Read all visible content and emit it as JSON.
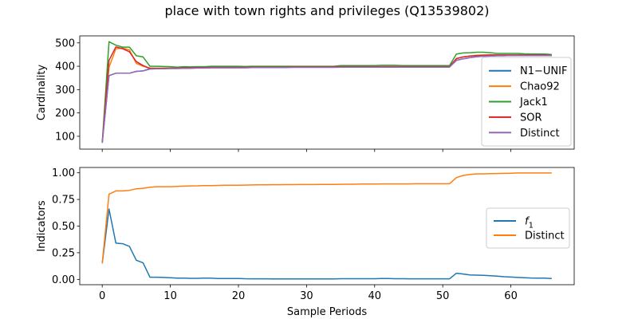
{
  "figure": {
    "title": "place with town rights and privileges (Q13539802)"
  },
  "chart_data": [
    {
      "type": "line",
      "ylabel": "Cardinality",
      "xlabel": "",
      "xlim": [
        -3.3,
        69.3
      ],
      "ylim": [
        45,
        530
      ],
      "xticks": [
        0,
        10,
        20,
        30,
        40,
        50,
        60
      ],
      "yticks": [
        100,
        200,
        300,
        400,
        500
      ],
      "x": [
        0,
        1,
        2,
        3,
        4,
        5,
        6,
        7,
        8,
        9,
        10,
        11,
        12,
        13,
        14,
        15,
        16,
        17,
        18,
        19,
        20,
        21,
        22,
        23,
        24,
        25,
        26,
        27,
        28,
        29,
        30,
        31,
        32,
        33,
        34,
        35,
        36,
        37,
        38,
        39,
        40,
        41,
        42,
        43,
        44,
        45,
        46,
        47,
        48,
        49,
        50,
        51,
        52,
        53,
        54,
        55,
        56,
        57,
        58,
        59,
        60,
        61,
        62,
        63,
        64,
        65,
        66
      ],
      "legend_position": "right",
      "series": [
        {
          "name": "N1−UNIF",
          "color": "#1f77b4",
          "values": [
            72,
            360,
            370,
            370,
            370,
            378,
            380,
            390,
            391,
            391,
            392,
            392,
            393,
            393,
            394,
            394,
            395,
            395,
            395,
            395,
            395,
            395,
            396,
            396,
            396,
            396,
            396,
            396,
            397,
            397,
            397,
            397,
            397,
            397,
            397,
            398,
            398,
            398,
            398,
            398,
            398,
            398,
            398,
            398,
            398,
            398,
            398,
            398,
            398,
            398,
            398,
            398,
            425,
            432,
            437,
            441,
            443,
            444,
            445,
            445,
            446,
            446,
            446,
            446,
            446,
            446,
            446
          ]
        },
        {
          "name": "Chao92",
          "color": "#ff7f0e",
          "values": [
            72,
            395,
            475,
            478,
            470,
            412,
            400,
            392,
            392,
            392,
            392,
            393,
            393,
            393,
            394,
            394,
            395,
            395,
            395,
            395,
            395,
            395,
            396,
            396,
            396,
            396,
            396,
            396,
            397,
            397,
            397,
            397,
            397,
            397,
            397,
            398,
            398,
            398,
            398,
            398,
            398,
            398,
            398,
            398,
            398,
            398,
            398,
            398,
            398,
            398,
            398,
            398,
            432,
            440,
            444,
            447,
            448,
            449,
            449,
            449,
            449,
            449,
            449,
            449,
            449,
            449,
            448
          ]
        },
        {
          "name": "Jack1",
          "color": "#2ca02c",
          "values": [
            72,
            505,
            490,
            482,
            482,
            445,
            440,
            400,
            400,
            399,
            398,
            396,
            398,
            397,
            398,
            398,
            400,
            400,
            400,
            400,
            400,
            399,
            400,
            400,
            400,
            400,
            400,
            400,
            400,
            400,
            400,
            400,
            400,
            400,
            400,
            403,
            403,
            403,
            403,
            403,
            403,
            404,
            404,
            404,
            403,
            403,
            403,
            403,
            403,
            403,
            403,
            403,
            452,
            457,
            458,
            460,
            460,
            458,
            455,
            455,
            455,
            455,
            453,
            452,
            452,
            452,
            450
          ]
        },
        {
          "name": "SOR",
          "color": "#d62728",
          "values": [
            72,
            425,
            483,
            475,
            462,
            420,
            403,
            391,
            391,
            391,
            391,
            392,
            393,
            393,
            394,
            394,
            395,
            395,
            395,
            395,
            395,
            395,
            396,
            396,
            396,
            396,
            396,
            396,
            397,
            397,
            397,
            397,
            397,
            397,
            397,
            398,
            398,
            398,
            398,
            398,
            398,
            398,
            398,
            398,
            398,
            398,
            398,
            398,
            398,
            398,
            398,
            398,
            433,
            440,
            444,
            446,
            447,
            448,
            448,
            448,
            448,
            448,
            448,
            448,
            448,
            448,
            447
          ]
        },
        {
          "name": "Distinct",
          "color": "#9467bd",
          "values": [
            72,
            360,
            370,
            370,
            370,
            378,
            380,
            388,
            389,
            389,
            390,
            390,
            391,
            391,
            392,
            392,
            393,
            393,
            393,
            393,
            393,
            393,
            394,
            394,
            394,
            394,
            394,
            394,
            395,
            395,
            395,
            395,
            395,
            395,
            395,
            396,
            396,
            396,
            396,
            396,
            396,
            396,
            396,
            396,
            396,
            396,
            396,
            396,
            396,
            396,
            396,
            396,
            425,
            432,
            437,
            441,
            443,
            444,
            445,
            445,
            446,
            446,
            446,
            446,
            446,
            446,
            446
          ]
        }
      ]
    },
    {
      "type": "line",
      "ylabel": "Indicators",
      "xlabel": "Sample Periods",
      "xlim": [
        -3.3,
        69.3
      ],
      "ylim": [
        -0.05,
        1.05
      ],
      "xticks": [
        0,
        10,
        20,
        30,
        40,
        50,
        60
      ],
      "xtick_labels": [
        "0",
        "10",
        "20",
        "30",
        "40",
        "50",
        "60"
      ],
      "yticks": [
        0.0,
        0.25,
        0.5,
        0.75,
        1.0
      ],
      "ytick_labels": [
        "0.00",
        "0.25",
        "0.50",
        "0.75",
        "1.00"
      ],
      "x": [
        0,
        1,
        2,
        3,
        4,
        5,
        6,
        7,
        8,
        9,
        10,
        11,
        12,
        13,
        14,
        15,
        16,
        17,
        18,
        19,
        20,
        21,
        22,
        23,
        24,
        25,
        26,
        27,
        28,
        29,
        30,
        31,
        32,
        33,
        34,
        35,
        36,
        37,
        38,
        39,
        40,
        41,
        42,
        43,
        44,
        45,
        46,
        47,
        48,
        49,
        50,
        51,
        52,
        53,
        54,
        55,
        56,
        57,
        58,
        59,
        60,
        61,
        62,
        63,
        64,
        65,
        66
      ],
      "legend_position": "center right",
      "series": [
        {
          "name": "f1",
          "color": "#1f77b4",
          "values": [
            0.15,
            0.66,
            0.34,
            0.335,
            0.31,
            0.18,
            0.155,
            0.02,
            0.02,
            0.018,
            0.015,
            0.012,
            0.012,
            0.01,
            0.01,
            0.012,
            0.012,
            0.008,
            0.008,
            0.008,
            0.008,
            0.006,
            0.005,
            0.005,
            0.005,
            0.004,
            0.004,
            0.004,
            0.004,
            0.004,
            0.004,
            0.004,
            0.004,
            0.004,
            0.004,
            0.006,
            0.006,
            0.006,
            0.006,
            0.006,
            0.006,
            0.008,
            0.008,
            0.006,
            0.006,
            0.005,
            0.005,
            0.005,
            0.005,
            0.005,
            0.005,
            0.005,
            0.058,
            0.05,
            0.042,
            0.04,
            0.038,
            0.034,
            0.03,
            0.025,
            0.022,
            0.018,
            0.015,
            0.013,
            0.012,
            0.012,
            0.008
          ]
        },
        {
          "name": "Distinct",
          "color": "#ff7f0e",
          "values": [
            0.15,
            0.8,
            0.83,
            0.83,
            0.835,
            0.85,
            0.855,
            0.865,
            0.87,
            0.87,
            0.87,
            0.872,
            0.875,
            0.877,
            0.878,
            0.88,
            0.88,
            0.882,
            0.883,
            0.883,
            0.884,
            0.885,
            0.886,
            0.887,
            0.887,
            0.888,
            0.888,
            0.889,
            0.889,
            0.89,
            0.89,
            0.89,
            0.891,
            0.891,
            0.891,
            0.892,
            0.893,
            0.893,
            0.894,
            0.894,
            0.895,
            0.896,
            0.896,
            0.896,
            0.896,
            0.896,
            0.897,
            0.897,
            0.897,
            0.897,
            0.897,
            0.897,
            0.955,
            0.975,
            0.985,
            0.99,
            0.99,
            0.992,
            0.993,
            0.995,
            0.996,
            0.998,
            0.998,
            0.998,
            0.998,
            0.998,
            0.998
          ]
        }
      ]
    }
  ]
}
